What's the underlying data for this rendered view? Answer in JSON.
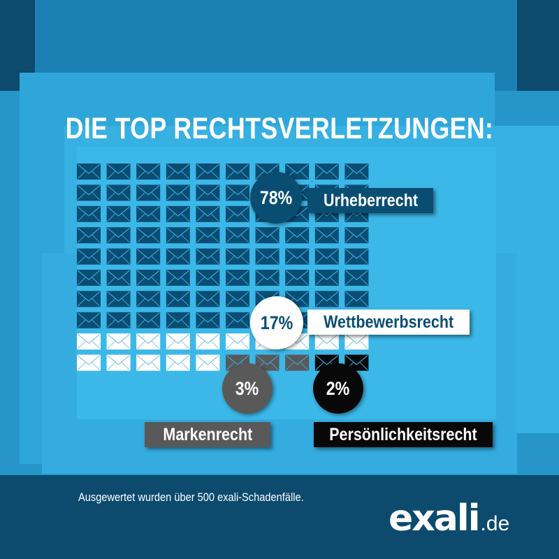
{
  "title": "DIE TOP RECHTSVERLETZUNGEN:",
  "chart_data": {
    "type": "waffle",
    "title": "DIE TOP RECHTSVERLETZUNGEN:",
    "total_icons": 100,
    "unit": "%",
    "series": [
      {
        "name": "Urheberrecht",
        "value": 78,
        "value_label": "78%",
        "color": "#0a4d73"
      },
      {
        "name": "Wettbewerbsrecht",
        "value": 17,
        "value_label": "17%",
        "color": "#ffffff"
      },
      {
        "name": "Markenrecht",
        "value": 3,
        "value_label": "3%",
        "color": "#595959"
      },
      {
        "name": "Persönlichkeitsrecht",
        "value": 2,
        "value_label": "2%",
        "color": "#080808"
      }
    ]
  },
  "footnote": "Ausgewertet wurden über 500 exali-Schadenfälle.",
  "logo": {
    "main": "exali",
    "tld": ".de"
  },
  "colors": {
    "background_dark": "#0c4a6e",
    "background_light": "#3ab6e6",
    "accent": "#1a9ad6"
  }
}
